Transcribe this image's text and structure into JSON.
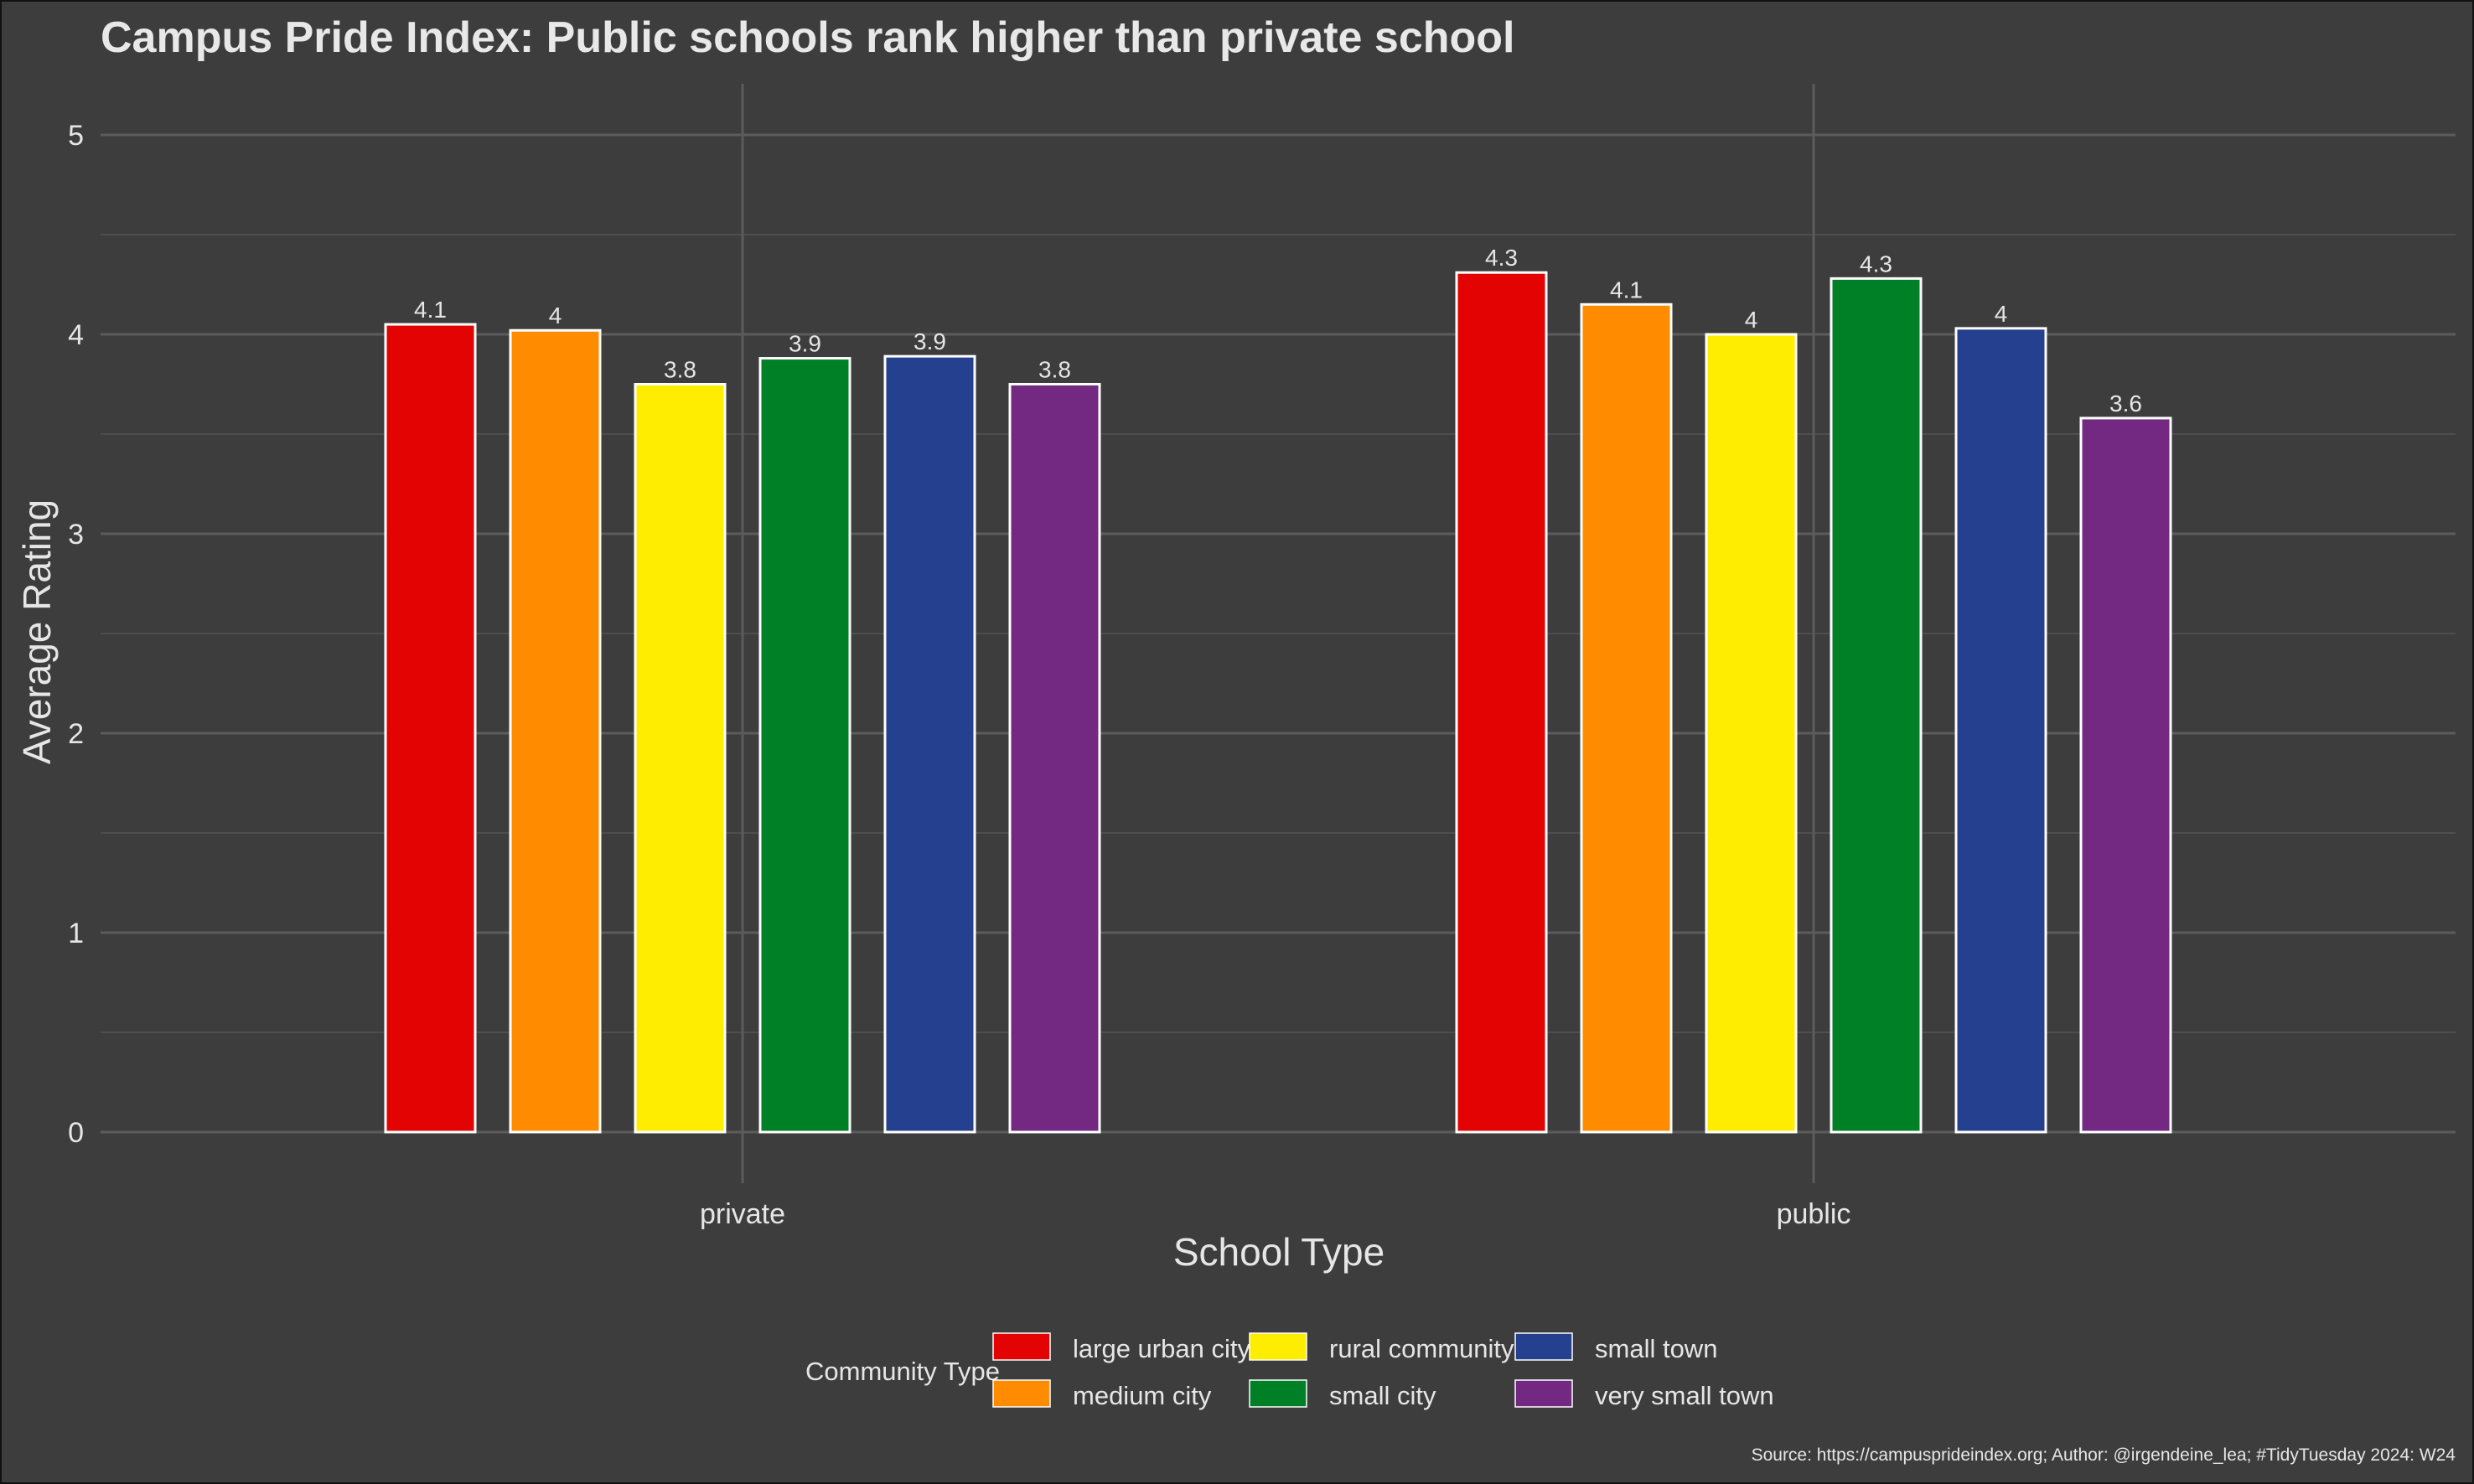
{
  "chart_data": {
    "type": "bar",
    "title": "Campus Pride Index: Public schools rank higher than private school",
    "xlabel": "School Type",
    "ylabel": "Average Rating",
    "categories": [
      "private",
      "public"
    ],
    "ylim": [
      0,
      5.2
    ],
    "yticks": [
      0,
      1,
      2,
      3,
      4,
      5
    ],
    "grid": true,
    "legend": {
      "title": "Community Type",
      "position": "bottom"
    },
    "series": [
      {
        "name": "large urban city",
        "color": "#e40303",
        "values": [
          4.05,
          4.31
        ],
        "labels": [
          "4.1",
          "4.3"
        ]
      },
      {
        "name": "medium city",
        "color": "#ff8c00",
        "values": [
          4.02,
          4.15
        ],
        "labels": [
          "4",
          "4.1"
        ]
      },
      {
        "name": "rural community",
        "color": "#ffed00",
        "values": [
          3.75,
          4.0
        ],
        "labels": [
          "3.8",
          "4"
        ]
      },
      {
        "name": "small city",
        "color": "#008026",
        "values": [
          3.88,
          4.28
        ],
        "labels": [
          "3.9",
          "4.3"
        ]
      },
      {
        "name": "small town",
        "color": "#24408e",
        "values": [
          3.89,
          4.03
        ],
        "labels": [
          "3.9",
          "4"
        ]
      },
      {
        "name": "very small town",
        "color": "#732982",
        "values": [
          3.75,
          3.58
        ],
        "labels": [
          "3.8",
          "3.6"
        ]
      }
    ],
    "caption": "Source: https://campusprideindex.org; Author: @irgendeine_lea; #TidyTuesday 2024: W24"
  }
}
